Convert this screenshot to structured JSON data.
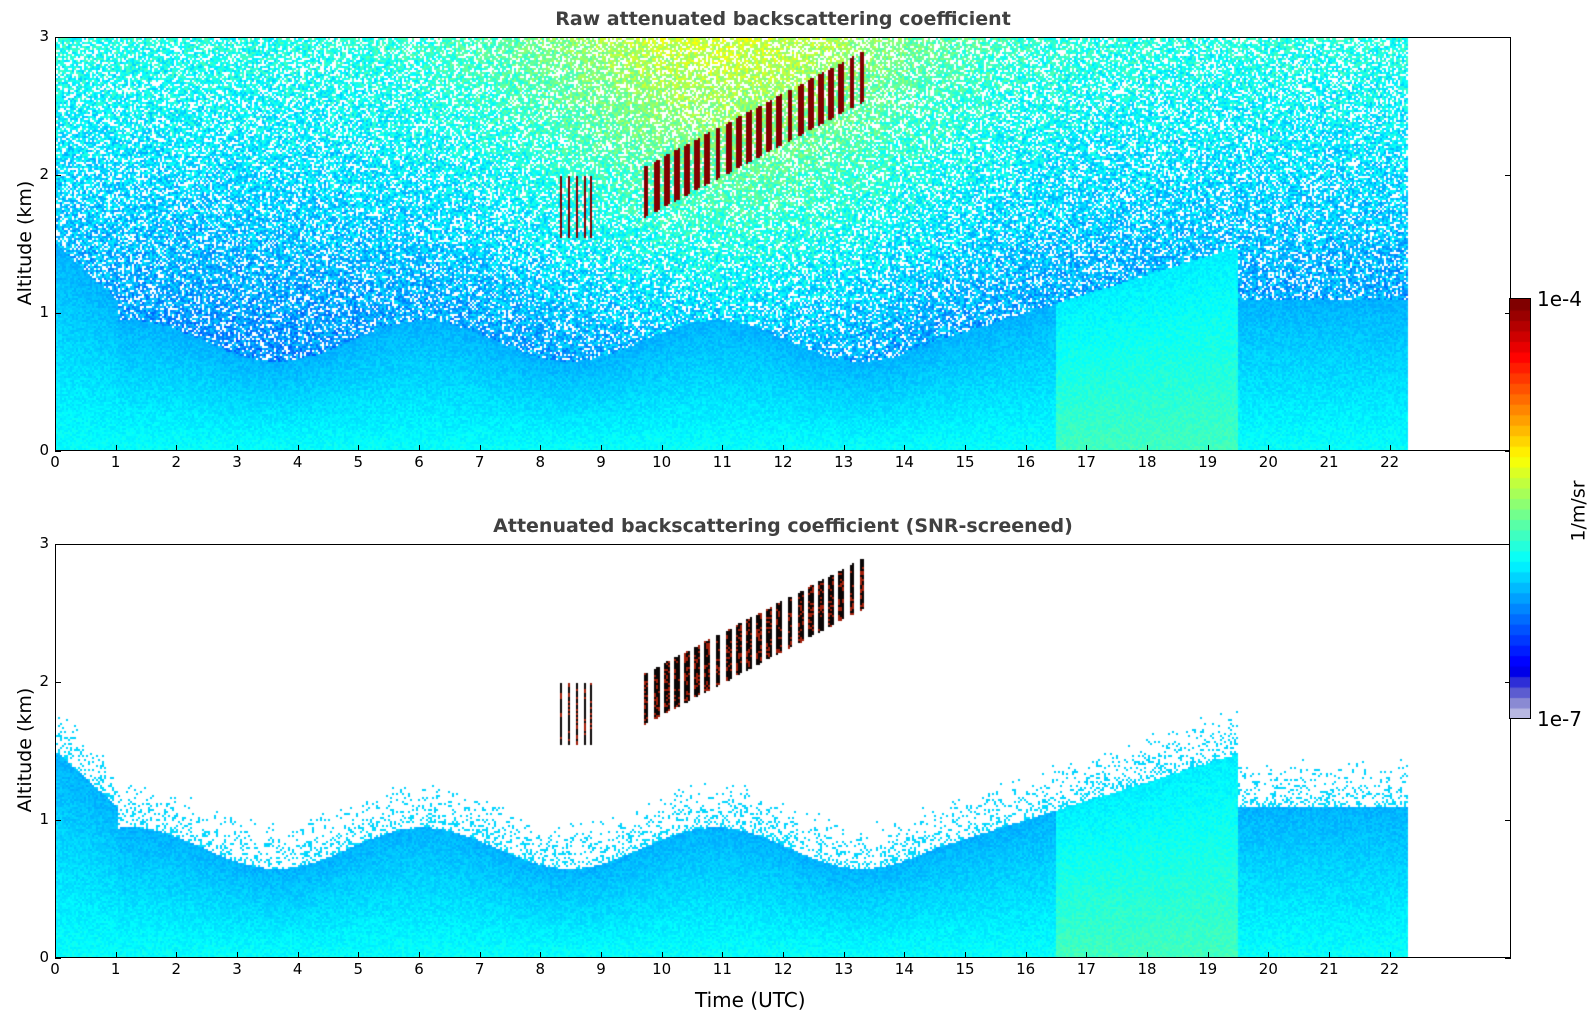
{
  "chart_data": [
    {
      "type": "heatmap",
      "title": "Raw attenuated backscattering coefficient",
      "xlabel": "",
      "ylabel": "Altitude (km)",
      "xlim": [
        0,
        24
      ],
      "ylim": [
        0,
        3
      ],
      "x_ticks": [
        "0",
        "1",
        "2",
        "3",
        "4",
        "5",
        "6",
        "7",
        "8",
        "9",
        "10",
        "11",
        "12",
        "13",
        "14",
        "15",
        "16",
        "17",
        "18",
        "19",
        "20",
        "21",
        "22"
      ],
      "y_ticks": [
        "0",
        "1",
        "2",
        "3"
      ],
      "data_extent_hours": 22.3,
      "screened": false
    },
    {
      "type": "heatmap",
      "title": "Attenuated backscattering coefficient (SNR-screened)",
      "xlabel": "Time (UTC)",
      "ylabel": "Altitude (km)",
      "xlim": [
        0,
        24
      ],
      "ylim": [
        0,
        3
      ],
      "x_ticks": [
        "0",
        "1",
        "2",
        "3",
        "4",
        "5",
        "6",
        "7",
        "8",
        "9",
        "10",
        "11",
        "12",
        "13",
        "14",
        "15",
        "16",
        "17",
        "18",
        "19",
        "20",
        "21",
        "22"
      ],
      "y_ticks": [
        "0",
        "1",
        "2",
        "3"
      ],
      "data_extent_hours": 22.3,
      "screened": true
    }
  ],
  "colorbar": {
    "max_label": "1e-4",
    "min_label": "1e-7",
    "unit": "1/m/sr",
    "colormap": "jet"
  }
}
